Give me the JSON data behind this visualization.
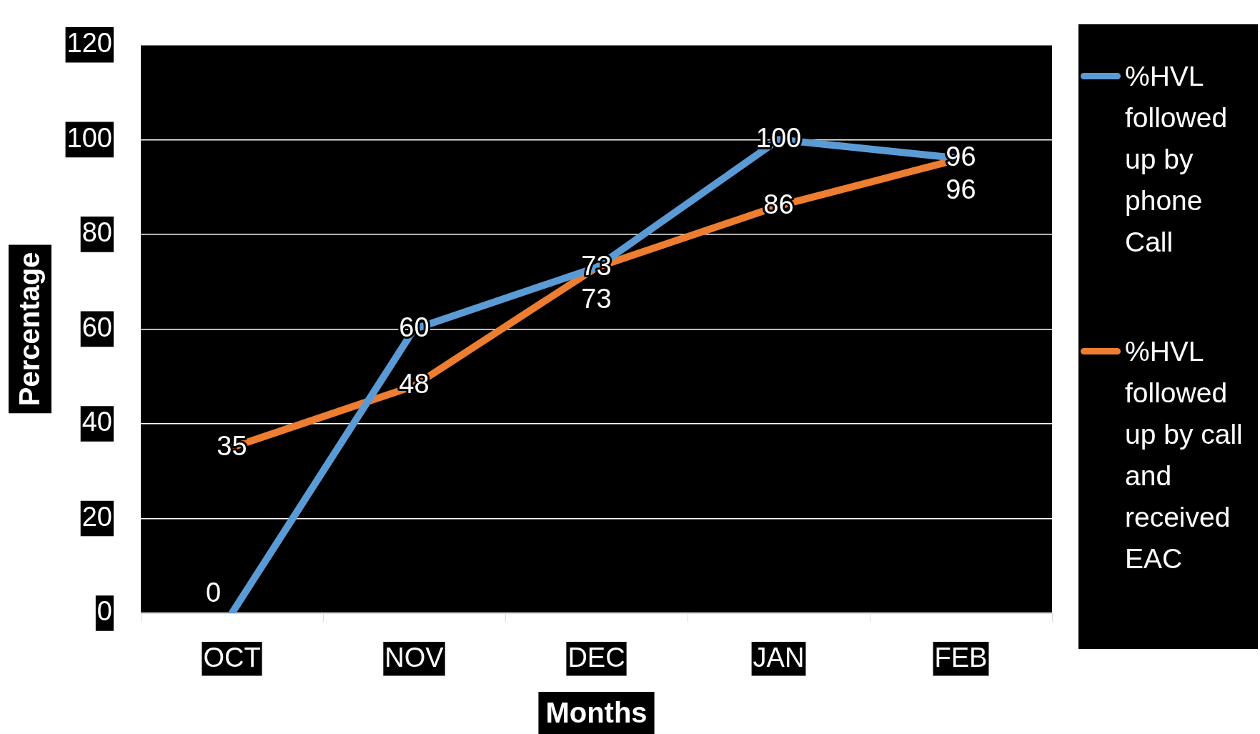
{
  "chart_data": {
    "type": "line",
    "xlabel": "Months",
    "ylabel": "Percentage",
    "categories": [
      "OCT",
      "NOV",
      "DEC",
      "JAN",
      "FEB"
    ],
    "series": [
      {
        "name": "%HVL followed up by phone Call",
        "color": "#5b9bd5",
        "values": [
          0,
          60,
          73,
          100,
          96
        ]
      },
      {
        "name": "%HVL followed up by call and received EAC",
        "color": "#ed7d31",
        "values": [
          35,
          48,
          73,
          86,
          96
        ]
      }
    ],
    "ylim": [
      0,
      120
    ],
    "yticks": [
      0,
      20,
      40,
      60,
      80,
      100,
      120
    ],
    "grid": "y",
    "legend": "right",
    "data_labels": true,
    "marker": "none",
    "line_style": "solid"
  }
}
